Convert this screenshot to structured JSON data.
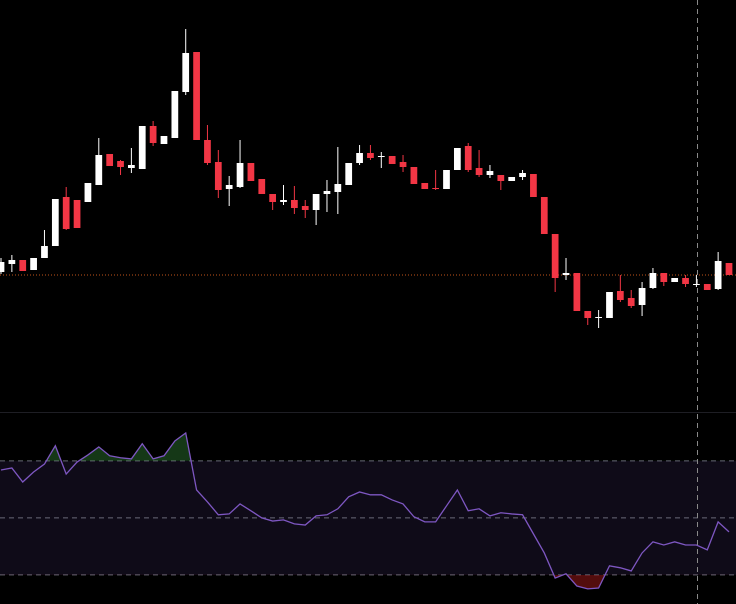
{
  "chart_data": [
    {
      "type": "candlestick",
      "open": [
        140,
        148,
        152,
        142,
        154,
        166,
        215,
        212,
        210,
        227,
        258,
        251,
        244,
        243,
        286,
        268,
        274,
        320,
        360,
        272,
        250,
        223,
        225,
        249,
        233,
        218,
        210,
        212,
        206,
        202,
        218,
        220,
        227,
        249,
        259,
        255,
        256,
        250,
        245,
        229,
        224,
        223,
        242,
        266,
        244,
        237,
        237,
        231,
        235,
        238,
        215,
        178,
        137,
        139,
        101,
        94,
        94,
        121,
        114,
        107,
        124,
        139,
        130,
        134,
        127,
        128,
        123,
        149
      ],
      "high": [
        154,
        157,
        152,
        154,
        182,
        213,
        225,
        212,
        229,
        274,
        258,
        252,
        264,
        286,
        291,
        276,
        321,
        383,
        360,
        287,
        262,
        236,
        272,
        249,
        233,
        218,
        227,
        226,
        212,
        218,
        232,
        265,
        249,
        267,
        267,
        260,
        256,
        257,
        245,
        229,
        242,
        242,
        264,
        269,
        262,
        247,
        237,
        235,
        242,
        238,
        215,
        178,
        154,
        139,
        101,
        102,
        120,
        137,
        122,
        130,
        144,
        139,
        134,
        137,
        137,
        128,
        160,
        149
      ],
      "low": [
        138,
        140,
        141,
        142,
        154,
        166,
        182,
        184,
        210,
        227,
        246,
        237,
        239,
        243,
        266,
        268,
        274,
        317,
        272,
        247,
        214,
        206,
        224,
        231,
        218,
        202,
        207,
        198,
        194,
        187,
        200,
        198,
        227,
        247,
        252,
        244,
        248,
        240,
        228,
        223,
        222,
        223,
        242,
        240,
        235,
        234,
        222,
        231,
        232,
        215,
        178,
        120,
        132,
        101,
        87,
        84,
        94,
        110,
        104,
        96,
        123,
        126,
        130,
        125,
        125,
        122,
        122,
        137
      ],
      "close": [
        150,
        152,
        141,
        154,
        166,
        213,
        183,
        184,
        229,
        257,
        246,
        245,
        247,
        286,
        269,
        276,
        321,
        359,
        272,
        249,
        222,
        227,
        249,
        231,
        218,
        210,
        212,
        204,
        202,
        218,
        221,
        228,
        249,
        259,
        254,
        256,
        248,
        245,
        228,
        223,
        223,
        242,
        264,
        242,
        237,
        241,
        231,
        235,
        239,
        215,
        178,
        134,
        139,
        101,
        94,
        95,
        120,
        112,
        106,
        124,
        139,
        130,
        134,
        128,
        128,
        122,
        151,
        137
      ],
      "ylim": [
        0,
        412
      ],
      "up_color": "#ffffff",
      "down_color": "#f23645",
      "last_price": 137,
      "last_price_color": "#c0541a"
    },
    {
      "type": "line",
      "values": [
        66.8,
        67.5,
        62.6,
        66.1,
        68.9,
        75.3,
        65.4,
        69.6,
        72.1,
        74.9,
        71.8,
        71.1,
        70.7,
        76.0,
        70.7,
        71.8,
        77.0,
        79.8,
        59.8,
        55.6,
        51.1,
        51.4,
        54.9,
        52.5,
        50.0,
        48.9,
        49.3,
        47.9,
        47.5,
        50.7,
        51.1,
        53.2,
        57.4,
        59.1,
        58.1,
        58.1,
        56.3,
        54.9,
        50.4,
        48.6,
        48.6,
        54.2,
        59.8,
        52.5,
        53.2,
        50.7,
        51.8,
        51.4,
        51.1,
        44.4,
        37.7,
        28.9,
        30.4,
        26.1,
        25.1,
        25.4,
        33.2,
        32.5,
        31.4,
        37.7,
        41.6,
        40.5,
        41.6,
        40.5,
        40.5,
        38.8,
        48.6,
        45.1
      ],
      "color": "#7e57c2",
      "ylim": [
        19.8,
        86.8
      ],
      "levels": [
        30,
        50,
        70
      ],
      "band_color": "#7e57c2",
      "overbought_color": "#2e7d32",
      "oversold_color": "#b71c1c"
    }
  ]
}
